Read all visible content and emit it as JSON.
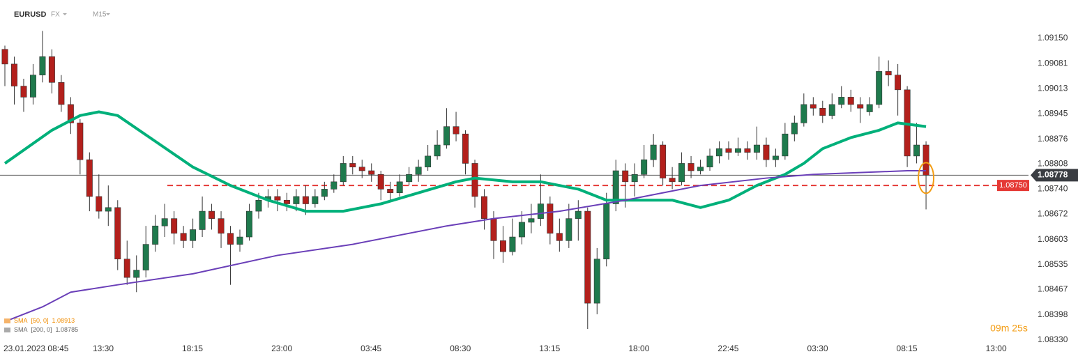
{
  "header": {
    "symbol": "EURUSD",
    "market": "FX",
    "interval": "M15"
  },
  "countdown": "09m 25s",
  "chart_data": {
    "type": "candlestick",
    "open": [
      1.0912,
      1.0908,
      1.0902,
      1.0899,
      1.0905,
      1.091,
      1.0903,
      1.0897,
      1.0892,
      1.0882,
      1.0872,
      1.0868,
      1.0869,
      1.0855,
      1.085,
      1.0852,
      1.0859,
      1.0864,
      1.0866,
      1.0862,
      1.086,
      1.0863,
      1.0868,
      1.0866,
      1.0862,
      1.0859,
      1.0861,
      1.0868,
      1.0871,
      1.0872,
      1.0871,
      1.087,
      1.0872,
      1.087,
      1.0872,
      1.0874,
      1.0876,
      1.0881,
      1.088,
      1.0879,
      1.0878,
      1.0874,
      1.0873,
      1.0876,
      1.0878,
      1.088,
      1.0883,
      1.0886,
      1.0891,
      1.0889,
      1.0881,
      1.0872,
      1.0866,
      1.086,
      1.0857,
      1.0861,
      1.0865,
      1.0866,
      1.087,
      1.0862,
      1.086,
      1.0866,
      1.0868,
      1.0843,
      1.0855,
      1.087,
      1.0879,
      1.0876,
      1.0878,
      1.0882,
      1.0886,
      1.0877,
      1.0876,
      1.0881,
      1.0879,
      1.088,
      1.0883,
      1.0885,
      1.0884,
      1.0885,
      1.0884,
      1.0886,
      1.0882,
      1.0883,
      1.0889,
      1.0892,
      1.0897,
      1.0896,
      1.0894,
      1.0897,
      1.0899,
      1.0897,
      1.0895,
      1.0897,
      1.0906,
      1.0905,
      1.0901,
      1.0883,
      1.0886
    ],
    "high": [
      1.0913,
      1.091,
      1.0904,
      1.0908,
      1.0917,
      1.0912,
      1.0905,
      1.0899,
      1.0893,
      1.0884,
      1.0878,
      1.0875,
      1.0871,
      1.086,
      1.0856,
      1.0864,
      1.0867,
      1.087,
      1.0868,
      1.0864,
      1.0866,
      1.0872,
      1.087,
      1.0868,
      1.0864,
      1.0863,
      1.087,
      1.0873,
      1.0874,
      1.0874,
      1.0873,
      1.0874,
      1.0875,
      1.0874,
      1.0876,
      1.0878,
      1.0883,
      1.0883,
      1.0882,
      1.0881,
      1.0879,
      1.0876,
      1.0878,
      1.088,
      1.0882,
      1.0886,
      1.089,
      1.0896,
      1.0895,
      1.089,
      1.0882,
      1.0874,
      1.0868,
      1.0864,
      1.0866,
      1.0868,
      1.087,
      1.0878,
      1.0872,
      1.0866,
      1.087,
      1.0871,
      1.0869,
      1.0858,
      1.0873,
      1.0882,
      1.0881,
      1.0881,
      1.0886,
      1.0889,
      1.0887,
      1.088,
      1.0884,
      1.0883,
      1.0882,
      1.0885,
      1.0887,
      1.0887,
      1.0888,
      1.0887,
      1.0891,
      1.0888,
      1.0885,
      1.0892,
      1.0894,
      1.09,
      1.0899,
      1.0898,
      1.09,
      1.0902,
      1.0901,
      1.0899,
      1.0899,
      1.091,
      1.0909,
      1.0908,
      1.0902,
      1.0892,
      1.0887
    ],
    "low": [
      1.0902,
      1.0897,
      1.0895,
      1.0897,
      1.0903,
      1.09,
      1.0895,
      1.0889,
      1.0878,
      1.0868,
      1.0866,
      1.0864,
      1.0852,
      1.0848,
      1.0846,
      1.085,
      1.0857,
      1.0861,
      1.0859,
      1.0858,
      1.0858,
      1.0861,
      1.0863,
      1.0858,
      1.0848,
      1.0857,
      1.086,
      1.0866,
      1.0869,
      1.0868,
      1.0868,
      1.0868,
      1.0867,
      1.0869,
      1.0871,
      1.0873,
      1.0875,
      1.0878,
      1.0877,
      1.0876,
      1.0871,
      1.0871,
      1.0872,
      1.0875,
      1.0876,
      1.0879,
      1.0882,
      1.0885,
      1.0887,
      1.0878,
      1.0869,
      1.0863,
      1.0855,
      1.0854,
      1.0856,
      1.0859,
      1.0862,
      1.0864,
      1.0859,
      1.0857,
      1.0858,
      1.086,
      1.0836,
      1.084,
      1.0853,
      1.0868,
      1.0869,
      1.0872,
      1.0877,
      1.088,
      1.0875,
      1.0874,
      1.0875,
      1.0877,
      1.0878,
      1.0879,
      1.0881,
      1.0882,
      1.0883,
      1.0882,
      1.0882,
      1.088,
      1.088,
      1.0882,
      1.0887,
      1.0891,
      1.0894,
      1.0892,
      1.0893,
      1.0896,
      1.0895,
      1.0892,
      1.0894,
      1.0896,
      1.0902,
      1.0894,
      1.088,
      1.0881,
      1.08685
    ],
    "close": [
      1.0908,
      1.0902,
      1.0899,
      1.0905,
      1.091,
      1.0903,
      1.0897,
      1.0892,
      1.0882,
      1.0872,
      1.0868,
      1.0869,
      1.0855,
      1.085,
      1.0852,
      1.0859,
      1.0864,
      1.0866,
      1.0862,
      1.086,
      1.0863,
      1.0868,
      1.0866,
      1.0862,
      1.0859,
      1.0861,
      1.0868,
      1.0871,
      1.0872,
      1.0871,
      1.087,
      1.0872,
      1.087,
      1.0872,
      1.0874,
      1.0876,
      1.0881,
      1.088,
      1.0879,
      1.0878,
      1.0874,
      1.0873,
      1.0876,
      1.0878,
      1.088,
      1.0883,
      1.0886,
      1.0891,
      1.0889,
      1.0881,
      1.0872,
      1.0866,
      1.086,
      1.0857,
      1.0861,
      1.0865,
      1.0866,
      1.087,
      1.0862,
      1.086,
      1.0866,
      1.0868,
      1.0843,
      1.0855,
      1.087,
      1.0879,
      1.0876,
      1.0878,
      1.0882,
      1.0886,
      1.0877,
      1.0876,
      1.0881,
      1.0879,
      1.088,
      1.0883,
      1.0885,
      1.0884,
      1.0885,
      1.0884,
      1.0886,
      1.0882,
      1.0883,
      1.0889,
      1.0892,
      1.0897,
      1.0896,
      1.0894,
      1.0897,
      1.0899,
      1.0897,
      1.0896,
      1.0897,
      1.0906,
      1.0905,
      1.0901,
      1.0883,
      1.0886,
      1.08778
    ],
    "up_color": "#1f7a4d",
    "down_color": "#b3201c",
    "series": [
      {
        "name": "SMA",
        "params": "[50, 0]",
        "last": 1.08913,
        "color": "#00b07a",
        "x": [
          0,
          5,
          8,
          10,
          12,
          16,
          20,
          24,
          28,
          32,
          36,
          40,
          44,
          48,
          50,
          54,
          57,
          61,
          64,
          68,
          71,
          74,
          77,
          80,
          83,
          85,
          87,
          90,
          93,
          95,
          98
        ],
        "values": [
          1.0881,
          1.089,
          1.0894,
          1.0895,
          1.0894,
          1.0887,
          1.088,
          1.0875,
          1.0871,
          1.0868,
          1.0868,
          1.087,
          1.0873,
          1.0876,
          1.0877,
          1.0876,
          1.0876,
          1.0874,
          1.0871,
          1.0871,
          1.0871,
          1.0869,
          1.0871,
          1.0875,
          1.0878,
          1.0881,
          1.0885,
          1.0888,
          1.089,
          1.0892,
          1.0891
        ]
      },
      {
        "name": "SMA",
        "params": "[200, 0]",
        "last": 1.08785,
        "color": "#6a3fb8",
        "x": [
          0,
          4,
          7,
          12,
          20,
          29,
          37,
          47,
          52,
          59,
          66,
          74,
          81,
          86,
          96,
          98
        ],
        "values": [
          1.0838,
          1.0842,
          1.0846,
          1.0848,
          1.0851,
          1.0856,
          1.0859,
          1.0864,
          1.0866,
          1.0868,
          1.0871,
          1.0875,
          1.0877,
          1.0878,
          1.0879,
          1.0879
        ]
      }
    ],
    "level": {
      "value": 1.0875,
      "label": "1.08750",
      "color": "#e53935"
    },
    "last_price": 1.08778,
    "xlim": [
      -0.52,
      108.9
    ],
    "xticks": [
      {
        "value": 0.96,
        "label": "23.01.2023 08:45"
      },
      {
        "value": 10.46,
        "label": "13:30"
      },
      {
        "value": 19.96,
        "label": "18:15"
      },
      {
        "value": 29.46,
        "label": "23:00"
      },
      {
        "value": 38.96,
        "label": "03:45"
      },
      {
        "value": 48.46,
        "label": "08:30"
      },
      {
        "value": 57.96,
        "label": "13:15"
      },
      {
        "value": 67.46,
        "label": "18:00"
      },
      {
        "value": 76.96,
        "label": "22:45"
      },
      {
        "value": 86.46,
        "label": "03:30"
      },
      {
        "value": 95.96,
        "label": "08:15"
      },
      {
        "value": 105.46,
        "label": "13:00"
      }
    ],
    "ylim": [
      1.08326,
      1.09254
    ],
    "yticks": [
      {
        "value": 1.0915,
        "label": "1.09150"
      },
      1.09081,
      1.09013,
      1.08945,
      1.08876,
      1.08808,
      {
        "value": 1.0874,
        "label": "1.08740"
      },
      1.08672,
      1.08603,
      1.08535,
      1.08467,
      1.08398,
      {
        "value": 1.0833,
        "label": "1.08330"
      }
    ],
    "grid": false
  }
}
